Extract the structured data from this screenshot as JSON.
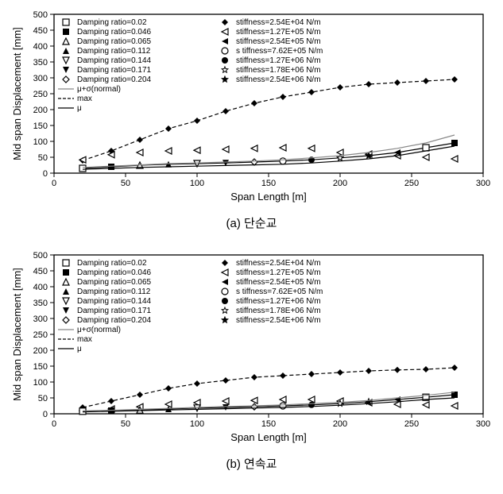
{
  "charts": [
    {
      "id": "chart-a",
      "caption": "(a) 단순교",
      "type": "scatter-line",
      "xlabel": "Span Length [m]",
      "ylabel": "Mid span Displacement [mm]",
      "label_fontsize": 13,
      "tick_fontsize": 11,
      "legend_fontsize": 10,
      "xlim": [
        0,
        300
      ],
      "ylim": [
        0,
        500
      ],
      "xticks": [
        0,
        50,
        100,
        150,
        200,
        250,
        300
      ],
      "yticks": [
        0,
        50,
        100,
        150,
        200,
        250,
        300,
        350,
        400,
        450,
        500
      ],
      "background_color": "#ffffff",
      "grid_color": "#000000",
      "plot_border_color": "#000000",
      "legend_col1": [
        {
          "marker": "square-open",
          "label": "Damping ratio=0.02"
        },
        {
          "marker": "square-filled",
          "label": "Damping ratio=0.046"
        },
        {
          "marker": "triangle-up-open",
          "label": "Damping ratio=0.065"
        },
        {
          "marker": "triangle-up-filled",
          "label": "Damping ratio=0.112"
        },
        {
          "marker": "triangle-down-open",
          "label": "Damping ratio=0.144"
        },
        {
          "marker": "triangle-down-filled",
          "label": "Damping ratio=0.171"
        },
        {
          "marker": "diamond-open",
          "label": "Damping ratio=0.204"
        },
        {
          "marker": "line-solid-gray",
          "label": "μ+σ(normal)"
        },
        {
          "marker": "line-dash",
          "label": "max"
        },
        {
          "marker": "line-solid",
          "label": "μ"
        }
      ],
      "legend_col2": [
        {
          "marker": "diamond-filled",
          "label": "stiffness=2.54E+04 N/m"
        },
        {
          "marker": "triangle-left-open",
          "label": "stiffness=1.27E+05 N/m"
        },
        {
          "marker": "triangle-left-filled",
          "label": "stiffness=2.54E+05 N/m"
        },
        {
          "marker": "circle-open",
          "label": "s tiffness=7.62E+05 N/m"
        },
        {
          "marker": "circle-filled",
          "label": "stiffness=1.27E+06 N/m"
        },
        {
          "marker": "star-open",
          "label": "stiffness=1.78E+06 N/m"
        },
        {
          "marker": "star-filled",
          "label": "stiffness=2.54E+06 N/m"
        }
      ],
      "series": [
        {
          "x": [
            20,
            40,
            60,
            80,
            100,
            120,
            140,
            160,
            180,
            200,
            220,
            240,
            260,
            280
          ],
          "y": [
            40,
            70,
            105,
            140,
            165,
            195,
            220,
            240,
            255,
            270,
            280,
            285,
            290,
            295
          ],
          "marker": "diamond-filled",
          "line": "dash"
        },
        {
          "x": [
            20,
            40,
            60,
            80,
            100,
            120,
            140,
            160,
            180,
            200,
            220,
            240,
            260,
            280
          ],
          "y": [
            42,
            58,
            65,
            70,
            72,
            75,
            78,
            80,
            78,
            65,
            60,
            55,
            50,
            45
          ],
          "marker": "triangle-left-open",
          "line": "none"
        },
        {
          "x": [
            20,
            40,
            60,
            80,
            100,
            120,
            140,
            160,
            180,
            200,
            220,
            240,
            260,
            280
          ],
          "y": [
            15,
            20,
            25,
            28,
            30,
            32,
            35,
            38,
            42,
            48,
            55,
            65,
            80,
            95
          ],
          "marker": "mixed",
          "line": "solid"
        },
        {
          "x": [
            20,
            40,
            60,
            80,
            100,
            120,
            140,
            160,
            180,
            200,
            220,
            240,
            260,
            280
          ],
          "y": [
            18,
            22,
            26,
            30,
            32,
            35,
            38,
            42,
            48,
            55,
            65,
            78,
            95,
            120
          ],
          "marker": "none",
          "line": "solid-gray"
        },
        {
          "x": [
            20,
            40,
            60,
            80,
            100,
            120,
            140,
            160,
            180,
            200,
            220,
            240,
            260,
            280
          ],
          "y": [
            12,
            15,
            18,
            20,
            22,
            24,
            26,
            28,
            32,
            38,
            45,
            55,
            70,
            85
          ],
          "marker": "none",
          "line": "solid"
        }
      ]
    },
    {
      "id": "chart-b",
      "caption": "(b) 연속교",
      "type": "scatter-line",
      "xlabel": "Span Length [m]",
      "ylabel": "Mid span Displacement [mm]",
      "label_fontsize": 13,
      "tick_fontsize": 11,
      "legend_fontsize": 10,
      "xlim": [
        0,
        300
      ],
      "ylim": [
        0,
        500
      ],
      "xticks": [
        0,
        50,
        100,
        150,
        200,
        250,
        300
      ],
      "yticks": [
        0,
        50,
        100,
        150,
        200,
        250,
        300,
        350,
        400,
        450,
        500
      ],
      "background_color": "#ffffff",
      "grid_color": "#000000",
      "plot_border_color": "#000000",
      "legend_col1": [
        {
          "marker": "square-open",
          "label": "Damping ratio=0.02"
        },
        {
          "marker": "square-filled",
          "label": "Damping ratio=0.046"
        },
        {
          "marker": "triangle-up-open",
          "label": "Damping ratio=0.065"
        },
        {
          "marker": "triangle-up-filled",
          "label": "Damping ratio=0.112"
        },
        {
          "marker": "triangle-down-open",
          "label": "Damping ratio=0.144"
        },
        {
          "marker": "triangle-down-filled",
          "label": "Damping ratio=0.171"
        },
        {
          "marker": "diamond-open",
          "label": "Damping ratio=0.204"
        },
        {
          "marker": "line-solid-gray",
          "label": "μ+σ(normal)"
        },
        {
          "marker": "line-dash",
          "label": "max"
        },
        {
          "marker": "line-solid",
          "label": "μ"
        }
      ],
      "legend_col2": [
        {
          "marker": "diamond-filled",
          "label": "stiffness=2.54E+04 N/m"
        },
        {
          "marker": "triangle-left-open",
          "label": "stiffness=1.27E+05 N/m"
        },
        {
          "marker": "triangle-left-filled",
          "label": "stiffness=2.54E+05 N/m"
        },
        {
          "marker": "circle-open",
          "label": "s tiffness=7.62E+05 N/m"
        },
        {
          "marker": "circle-filled",
          "label": "stiffness=1.27E+06 N/m"
        },
        {
          "marker": "star-open",
          "label": "stiffness=1.78E+06 N/m"
        },
        {
          "marker": "star-filled",
          "label": "stiffness=2.54E+06 N/m"
        }
      ],
      "series": [
        {
          "x": [
            20,
            40,
            60,
            80,
            100,
            120,
            140,
            160,
            180,
            200,
            220,
            240,
            260,
            280
          ],
          "y": [
            20,
            40,
            60,
            80,
            95,
            105,
            115,
            120,
            125,
            130,
            135,
            138,
            140,
            145
          ],
          "marker": "diamond-filled",
          "line": "dash"
        },
        {
          "x": [
            20,
            40,
            60,
            80,
            100,
            120,
            140,
            160,
            180,
            200,
            220,
            240,
            260,
            280
          ],
          "y": [
            10,
            15,
            22,
            30,
            35,
            40,
            42,
            45,
            45,
            40,
            35,
            30,
            28,
            25
          ],
          "marker": "triangle-left-open",
          "line": "none"
        },
        {
          "x": [
            20,
            40,
            60,
            80,
            100,
            120,
            140,
            160,
            180,
            200,
            220,
            240,
            260,
            280
          ],
          "y": [
            8,
            10,
            12,
            15,
            18,
            20,
            22,
            25,
            28,
            32,
            38,
            45,
            52,
            60
          ],
          "marker": "mixed",
          "line": "solid"
        },
        {
          "x": [
            20,
            40,
            60,
            80,
            100,
            120,
            140,
            160,
            180,
            200,
            220,
            240,
            260,
            280
          ],
          "y": [
            9,
            11,
            14,
            17,
            20,
            23,
            25,
            28,
            32,
            36,
            42,
            50,
            58,
            68
          ],
          "marker": "none",
          "line": "solid-gray"
        },
        {
          "x": [
            20,
            40,
            60,
            80,
            100,
            120,
            140,
            160,
            180,
            200,
            220,
            240,
            260,
            280
          ],
          "y": [
            6,
            8,
            10,
            12,
            14,
            16,
            18,
            20,
            23,
            27,
            32,
            38,
            45,
            50
          ],
          "marker": "none",
          "line": "solid"
        }
      ]
    }
  ]
}
